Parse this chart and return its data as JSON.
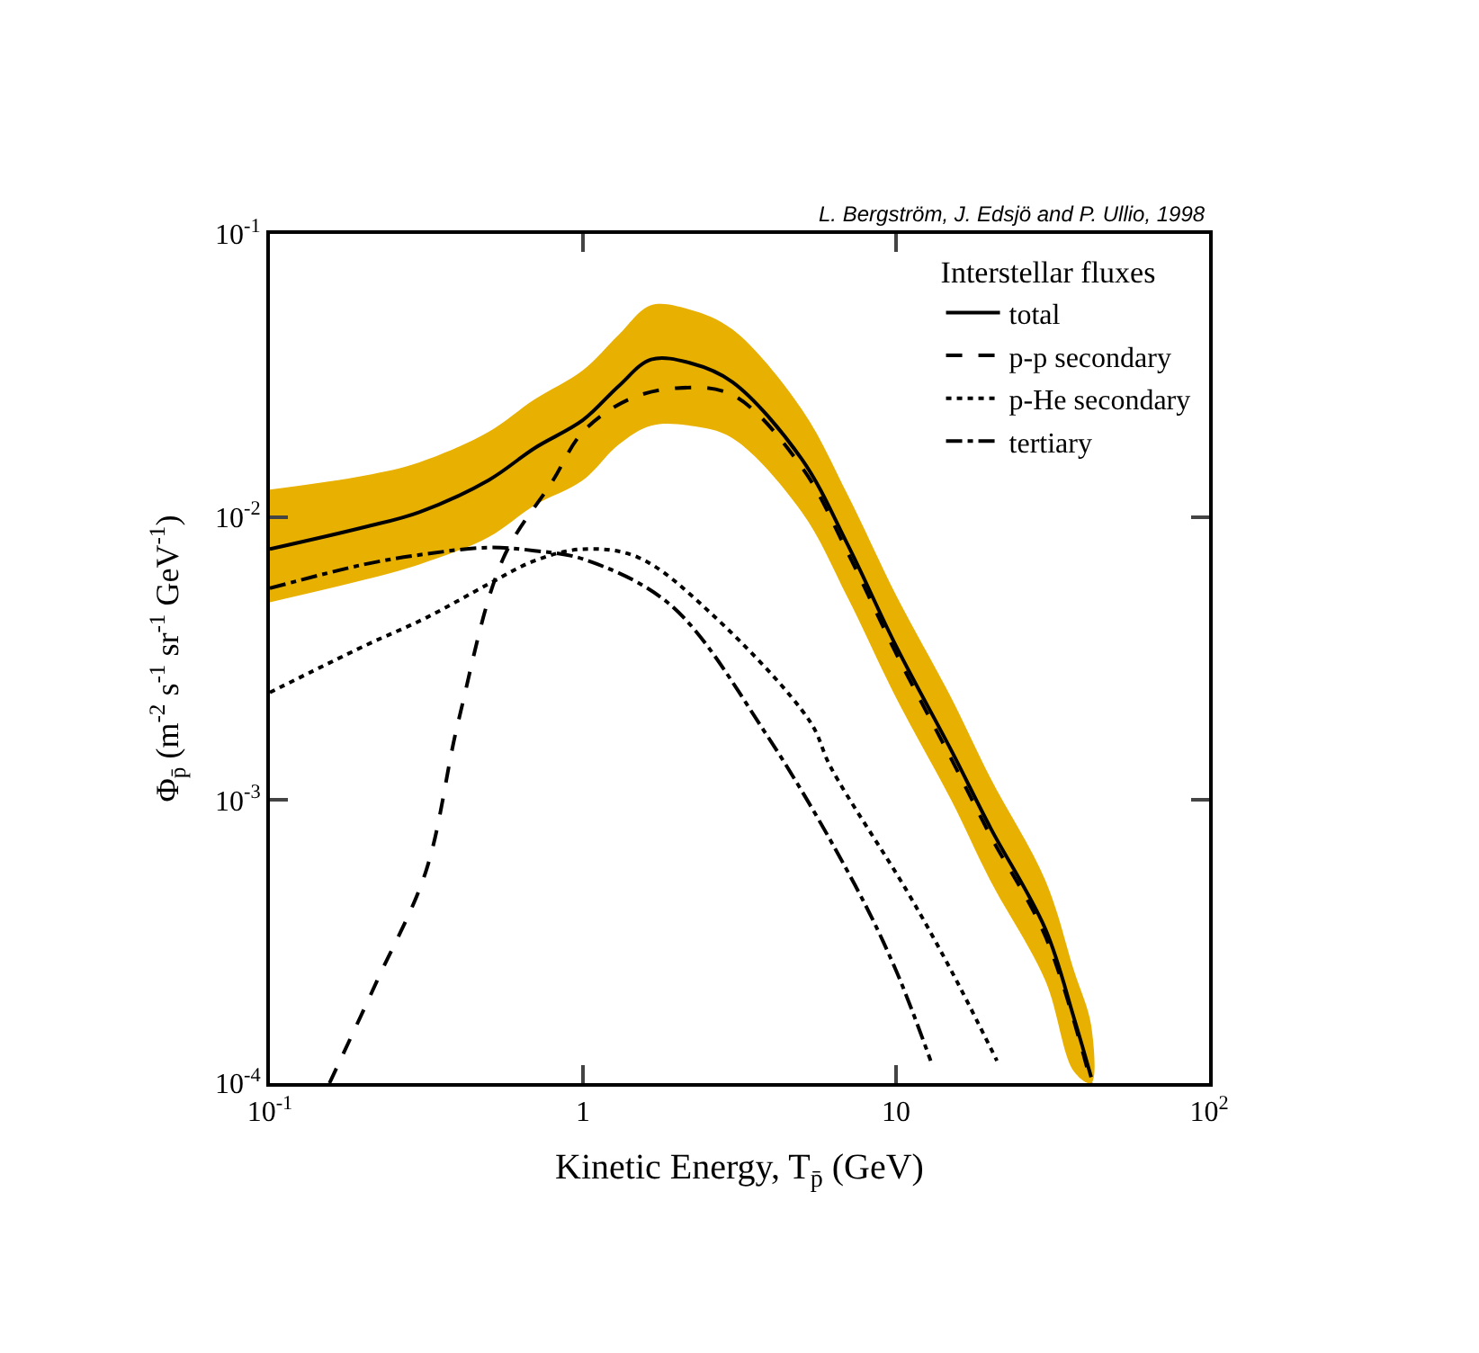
{
  "chart_data": {
    "type": "line",
    "xlabel": "Kinetic Energy, T$_{p̄}$ (GeV)",
    "ylabel": "Φ$_{p̄}$ (m$^{-2}$ s$^{-1}$ sr$^{-1}$ GeV$^{-1}$)",
    "legend_title": "Interstellar fluxes",
    "annotations": [
      "L. Bergström, J. Edsjö and P. Ullio, 1998"
    ],
    "log": "xy",
    "legend": "top right",
    "marker": "none",
    "xlim": [
      0.1,
      100
    ],
    "ylim": [
      0.0001,
      0.1
    ],
    "xticks": [
      {
        "value": 0.1,
        "label": "10$^{-1}$"
      },
      1,
      10,
      {
        "value": 100,
        "label": "10$^{2}$"
      }
    ],
    "yticks": [
      {
        "value": 0.0001,
        "label": "10$^{-4}$"
      },
      {
        "value": 0.001,
        "label": "10$^{-3}$"
      },
      {
        "value": 0.01,
        "label": "10$^{-2}$"
      },
      {
        "value": 0.1,
        "label": "10$^{-1}$"
      }
    ],
    "series": [
      {
        "name": "total",
        "color": "#000000",
        "line_style": "solid",
        "x": [
          0.1,
          0.2,
          0.3,
          0.5,
          0.7,
          1,
          1.3,
          1.65,
          2.2,
          3,
          5,
          7,
          10,
          15,
          20,
          30,
          37,
          42
        ],
        "values": [
          0.0077,
          0.0092,
          0.0104,
          0.0135,
          0.0175,
          0.022,
          0.029,
          0.036,
          0.035,
          0.03,
          0.016,
          0.008,
          0.0035,
          0.0015,
          0.0008,
          0.00035,
          0.00017,
          0.000105
        ]
      },
      {
        "color": "#e8b000",
        "x": [
          0.1,
          0.2,
          0.3,
          0.5,
          0.7,
          1,
          1.3,
          1.65,
          2.2,
          3,
          5,
          7,
          10,
          15,
          20,
          30,
          37,
          42
        ],
        "values": [
          null,
          null,
          null,
          null,
          null,
          null,
          null,
          null,
          null,
          null,
          null,
          null,
          null,
          null,
          null,
          null,
          null,
          null
        ],
        "upper": [
          0.0125,
          0.014,
          0.0156,
          0.02,
          0.026,
          0.033,
          0.044,
          0.056,
          0.054,
          0.046,
          0.024,
          0.012,
          0.0053,
          0.0023,
          0.0012,
          0.00052,
          0.00025,
          0.00016
        ],
        "lower": [
          0.005,
          0.006,
          0.0068,
          0.0085,
          0.011,
          0.0135,
          0.018,
          0.021,
          0.021,
          0.019,
          0.0104,
          0.0052,
          0.0023,
          0.001,
          0.00052,
          0.00023,
          0.00011,
          0.0001
        ]
      },
      {
        "name": "p-p secondary",
        "color": "#000000",
        "line_style": "dashed",
        "x": [
          0.155,
          0.22,
          0.315,
          0.4,
          0.555,
          0.8,
          1,
          1.4,
          1.98,
          3,
          5,
          7,
          10,
          15,
          20,
          30,
          42
        ],
        "values": [
          0.0001,
          0.00023,
          0.00056,
          0.0019,
          0.0071,
          0.0134,
          0.02,
          0.026,
          0.0285,
          0.027,
          0.015,
          0.0075,
          0.0033,
          0.0014,
          0.00075,
          0.00033,
          0.0001
        ]
      },
      {
        "name": "p-He secondary",
        "color": "#000000",
        "line_style": "dotted",
        "x": [
          0.1,
          0.2,
          0.315,
          0.5,
          0.7,
          1,
          1.5,
          2.6,
          5.3,
          6.2,
          10.8,
          15,
          21
        ],
        "values": [
          0.0024,
          0.0035,
          0.0044,
          0.0058,
          0.007,
          0.0077,
          0.0072,
          0.0045,
          0.0019,
          0.0013,
          0.00048,
          0.00025,
          0.00012
        ]
      },
      {
        "name": "tertiary",
        "color": "#000000",
        "line_style": "dashdot",
        "x": [
          0.1,
          0.2,
          0.315,
          0.5,
          0.7,
          1,
          1.9,
          3.86,
          7.4,
          10,
          12.9
        ],
        "values": [
          0.0056,
          0.0068,
          0.0074,
          0.0078,
          0.0076,
          0.0071,
          0.0049,
          0.0017,
          0.0005,
          0.00025,
          0.00012
        ]
      }
    ]
  }
}
